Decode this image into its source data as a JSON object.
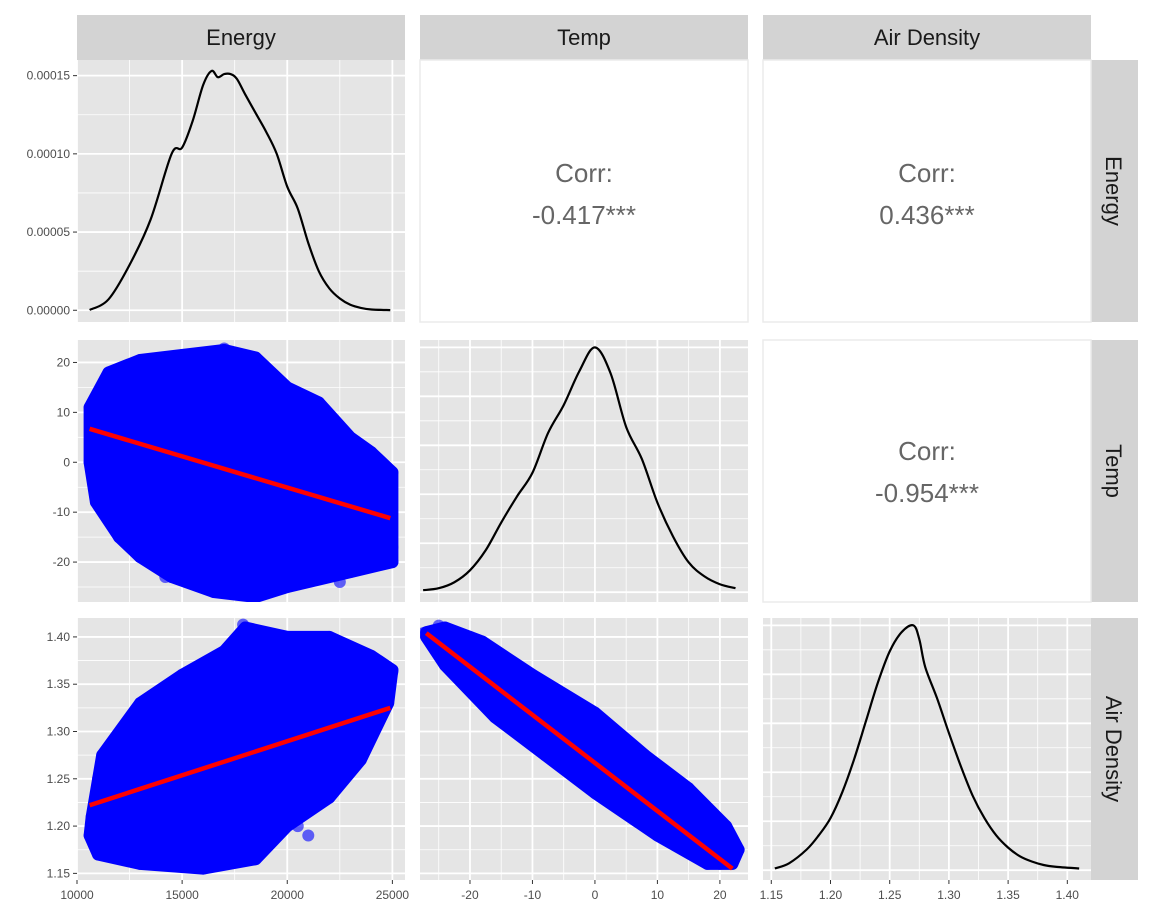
{
  "figure": {
    "columns": [
      "Energy",
      "Temp",
      "Air Density"
    ],
    "rows": [
      "Energy",
      "Temp",
      "Air Density"
    ]
  },
  "colors": {
    "panel_bg": "#e5e5e5",
    "strip_bg": "#d3d3d3",
    "grid": "#ffffff",
    "points": "#0000ff",
    "fit_line": "#ff0000",
    "density_line": "#000000",
    "corr_text": "#666666"
  },
  "chart_data": {
    "type": "scatter",
    "variables": {
      "Energy": {
        "lim": [
          10000,
          25600
        ],
        "breaks": [
          10000,
          15000,
          20000,
          25000
        ],
        "labels": [
          "10000",
          "15000",
          "20000",
          "25000"
        ]
      },
      "Temp": {
        "lim": [
          -28,
          24.5
        ],
        "breaks": [
          -20,
          -10,
          0,
          10,
          20
        ],
        "labels": [
          "-20",
          "-10",
          "0",
          "10",
          "20"
        ]
      },
      "Air Density": {
        "lim": [
          1.143,
          1.42
        ],
        "breaks": [
          1.15,
          1.2,
          1.25,
          1.3,
          1.35,
          1.4
        ],
        "labels": [
          "1.15",
          "1.20",
          "1.25",
          "1.30",
          "1.35",
          "1.40"
        ]
      }
    },
    "energy_density_axis": {
      "lim": [
        -7.5e-06,
        0.00016
      ],
      "breaks": [
        0,
        5e-05,
        0.0001,
        0.00015
      ],
      "labels": [
        "0.00000",
        "0.00005",
        "0.00010",
        "0.00015"
      ]
    },
    "correlations": [
      {
        "x": "Temp",
        "y": "Energy",
        "label": "Corr:",
        "value": "-0.417***"
      },
      {
        "x": "Air Density",
        "y": "Energy",
        "label": "Corr:",
        "value": "0.436***"
      },
      {
        "x": "Air Density",
        "y": "Temp",
        "label": "Corr:",
        "value": "-0.954***"
      }
    ],
    "densities": [
      {
        "var": "Energy",
        "x": [
          10600,
          11500,
          12500,
          13500,
          14500,
          15000,
          15500,
          16000,
          16400,
          16700,
          17000,
          17300,
          17600,
          18000,
          18500,
          19000,
          19500,
          20000,
          20500,
          21000,
          21500,
          22000,
          22500,
          23000,
          23500,
          24000,
          24900
        ],
        "y": [
          2e-07,
          7e-06,
          2.9e-05,
          5.8e-05,
          0.0001,
          0.000104,
          0.000121,
          0.000144,
          0.000153,
          0.000149,
          0.000151,
          0.000151,
          0.000148,
          0.000138,
          0.000126,
          0.000114,
          0.0001,
          7.9e-05,
          6.5e-05,
          4.3e-05,
          2.5e-05,
          1.4e-05,
          7.5e-06,
          3.5e-06,
          1.5e-06,
          5e-07,
          1e-07
        ]
      },
      {
        "var": "Temp",
        "x": [
          -27.5,
          -25,
          -22.5,
          -20,
          -17.5,
          -15,
          -12.5,
          -10,
          -7.5,
          -5,
          -2.5,
          0,
          2.5,
          5,
          7.5,
          10,
          12.5,
          15,
          17.5,
          20,
          22.5
        ],
        "y": [
          0.001,
          0.002,
          0.005,
          0.011,
          0.021,
          0.035,
          0.048,
          0.06,
          0.08,
          0.094,
          0.111,
          0.123,
          0.11,
          0.083,
          0.067,
          0.045,
          0.028,
          0.015,
          0.008,
          0.004,
          0.002
        ]
      },
      {
        "var": "Air Density",
        "x": [
          1.153,
          1.165,
          1.18,
          1.19,
          1.2,
          1.21,
          1.22,
          1.23,
          1.24,
          1.25,
          1.26,
          1.27,
          1.275,
          1.28,
          1.29,
          1.3,
          1.31,
          1.32,
          1.33,
          1.34,
          1.35,
          1.36,
          1.37,
          1.38,
          1.39,
          1.41
        ],
        "y": [
          0.1,
          0.4,
          1.2,
          2.0,
          3.0,
          4.5,
          6.4,
          8.6,
          10.8,
          12.6,
          13.7,
          14.1,
          13.3,
          11.7,
          9.9,
          7.9,
          6.0,
          4.3,
          3.0,
          2.0,
          1.3,
          0.8,
          0.5,
          0.3,
          0.2,
          0.1
        ]
      }
    ],
    "fits": [
      {
        "x": "Energy",
        "y": "Temp",
        "x0": 10600,
        "y0": 6.7,
        "x1": 24900,
        "y1": -11.2
      },
      {
        "x": "Energy",
        "y": "Air Density",
        "x0": 10600,
        "y0": 1.222,
        "x1": 24900,
        "y1": 1.325
      },
      {
        "x": "Temp",
        "y": "Air Density",
        "x0": -27,
        "y0": 1.404,
        "x1": 22,
        "y1": 1.155
      }
    ],
    "clouds": [
      {
        "x": "Energy",
        "y": "Temp",
        "outline": [
          [
            10600,
            11
          ],
          [
            11500,
            18
          ],
          [
            13000,
            20.5
          ],
          [
            15000,
            21.5
          ],
          [
            17000,
            22.5
          ],
          [
            18500,
            21
          ],
          [
            20000,
            15
          ],
          [
            21500,
            12
          ],
          [
            23000,
            5
          ],
          [
            24000,
            2
          ],
          [
            25000,
            -2
          ],
          [
            25000,
            -20
          ],
          [
            23000,
            -22
          ],
          [
            20000,
            -25
          ],
          [
            18500,
            -27
          ],
          [
            16500,
            -26
          ],
          [
            14500,
            -23
          ],
          [
            13000,
            -19
          ],
          [
            12000,
            -15
          ],
          [
            10900,
            -8
          ],
          [
            10600,
            0
          ]
        ],
        "points": [
          [
            25000,
            -17
          ],
          [
            25000,
            -20
          ],
          [
            24500,
            -12
          ],
          [
            24800,
            -19
          ],
          [
            10800,
            11
          ],
          [
            18300,
            -27
          ],
          [
            17000,
            22.8
          ],
          [
            12000,
            -15
          ],
          [
            14200,
            -23
          ],
          [
            22500,
            -24
          ]
        ]
      },
      {
        "x": "Energy",
        "y": "Air Density",
        "outline": [
          [
            10700,
            1.21
          ],
          [
            11200,
            1.275
          ],
          [
            13000,
            1.33
          ],
          [
            15000,
            1.36
          ],
          [
            17000,
            1.385
          ],
          [
            18000,
            1.41
          ],
          [
            20000,
            1.4
          ],
          [
            22000,
            1.4
          ],
          [
            24000,
            1.38
          ],
          [
            25000,
            1.365
          ],
          [
            24800,
            1.33
          ],
          [
            23500,
            1.27
          ],
          [
            22000,
            1.23
          ],
          [
            20000,
            1.2
          ],
          [
            18500,
            1.165
          ],
          [
            16000,
            1.155
          ],
          [
            13000,
            1.16
          ],
          [
            11000,
            1.17
          ],
          [
            10600,
            1.19
          ]
        ],
        "points": [
          [
            25000,
            1.363
          ],
          [
            24800,
            1.35
          ],
          [
            17900,
            1.413
          ],
          [
            18300,
            1.408
          ],
          [
            10700,
            1.2
          ],
          [
            11000,
            1.25
          ],
          [
            21000,
            1.19
          ],
          [
            20500,
            1.2
          ],
          [
            12000,
            1.17
          ],
          [
            16000,
            1.16
          ]
        ]
      },
      {
        "x": "Temp",
        "y": "Air Density",
        "outline": [
          [
            -27,
            1.405
          ],
          [
            -24,
            1.41
          ],
          [
            -18,
            1.395
          ],
          [
            -10,
            1.36
          ],
          [
            0,
            1.32
          ],
          [
            8,
            1.275
          ],
          [
            15,
            1.24
          ],
          [
            21,
            1.2
          ],
          [
            23,
            1.175
          ],
          [
            22,
            1.16
          ],
          [
            18,
            1.16
          ],
          [
            10,
            1.19
          ],
          [
            0,
            1.235
          ],
          [
            -8,
            1.275
          ],
          [
            -16,
            1.315
          ],
          [
            -24,
            1.37
          ],
          [
            -27,
            1.4
          ]
        ],
        "points": [
          [
            -27.5,
            1.404
          ],
          [
            -25,
            1.412
          ],
          [
            -24,
            1.405
          ],
          [
            22.5,
            1.175
          ],
          [
            22,
            1.162
          ],
          [
            20,
            1.16
          ],
          [
            -20,
            1.4
          ],
          [
            15,
            1.185
          ]
        ]
      }
    ]
  }
}
